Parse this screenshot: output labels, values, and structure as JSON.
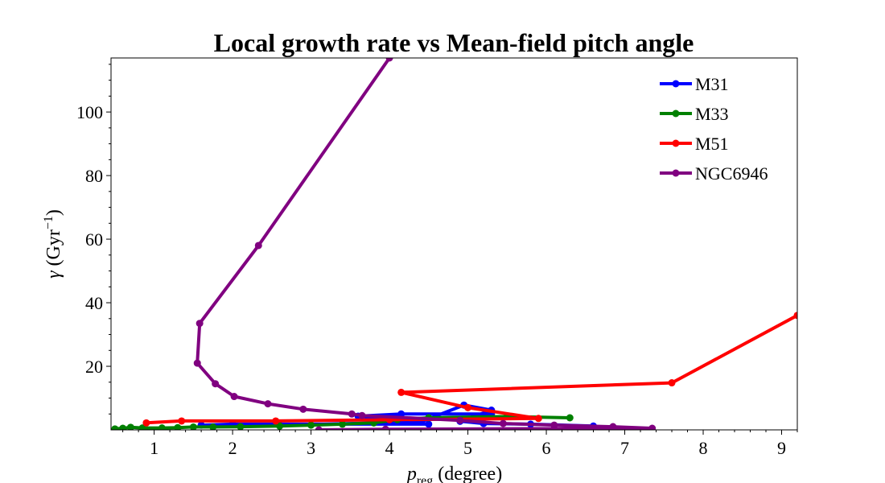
{
  "chart_data": {
    "type": "line",
    "title": "Local growth rate vs Mean-field pitch angle",
    "xlabel_main": "p",
    "xlabel_sub": "reg",
    "xlabel_rest": " (degree)",
    "ylabel_main": "γ (Gyr",
    "ylabel_sup": "−1",
    "ylabel_close": ")",
    "xlim": [
      0.45,
      9.2
    ],
    "ylim": [
      0,
      117
    ],
    "x_ticks": [
      "1",
      "2",
      "3",
      "4",
      "5",
      "6",
      "7",
      "8",
      "9"
    ],
    "y_ticks": [
      "20",
      "40",
      "60",
      "80",
      "100"
    ],
    "legend_position": "top-right",
    "series": [
      {
        "name": "M31",
        "color": "#0000ff",
        "points": [
          [
            5.3,
            5.0
          ],
          [
            4.15,
            5.0
          ],
          [
            3.6,
            4.3
          ],
          [
            4.5,
            1.8
          ],
          [
            2.0,
            1.8
          ],
          [
            1.6,
            1.5
          ],
          [
            2.6,
            1.5
          ],
          [
            4.4,
            2.5
          ],
          [
            4.95,
            7.8
          ],
          [
            5.3,
            6.2
          ],
          [
            4.9,
            2.7
          ],
          [
            5.2,
            2.0
          ],
          [
            5.8,
            1.8
          ],
          [
            6.6,
            1.2
          ]
        ]
      },
      {
        "name": "M33",
        "color": "#008000",
        "points": [
          [
            0.5,
            0.3
          ],
          [
            0.6,
            0.5
          ],
          [
            0.7,
            0.8
          ],
          [
            0.85,
            0.6
          ],
          [
            1.1,
            0.6
          ],
          [
            1.3,
            0.7
          ],
          [
            1.5,
            0.9
          ],
          [
            1.75,
            0.9
          ],
          [
            2.1,
            1.0
          ],
          [
            2.6,
            1.2
          ],
          [
            3.0,
            1.5
          ],
          [
            3.4,
            1.8
          ],
          [
            3.8,
            2.2
          ],
          [
            4.1,
            3.2
          ],
          [
            4.5,
            3.8
          ],
          [
            5.5,
            4.2
          ],
          [
            6.3,
            3.8
          ]
        ]
      },
      {
        "name": "M51",
        "color": "#ff0000",
        "points": [
          [
            0.9,
            2.2
          ],
          [
            1.35,
            2.8
          ],
          [
            2.55,
            2.8
          ],
          [
            4.0,
            3.2
          ],
          [
            5.9,
            3.6
          ],
          [
            5.0,
            7.0
          ],
          [
            4.15,
            11.8
          ],
          [
            7.6,
            14.8
          ],
          [
            9.2,
            36.0
          ]
        ]
      },
      {
        "name": "NGC6946",
        "color": "#800080",
        "points": [
          [
            4.0,
            117.0
          ],
          [
            2.33,
            58.0
          ],
          [
            1.58,
            33.5
          ],
          [
            1.55,
            21.0
          ],
          [
            1.78,
            14.5
          ],
          [
            2.02,
            10.5
          ],
          [
            2.45,
            8.2
          ],
          [
            2.9,
            6.5
          ],
          [
            3.52,
            5.0
          ],
          [
            3.65,
            4.5
          ],
          [
            4.9,
            3.0
          ],
          [
            5.45,
            2.0
          ],
          [
            6.1,
            1.5
          ],
          [
            6.85,
            1.0
          ],
          [
            7.35,
            0.5
          ],
          [
            3.95,
            0.2
          ],
          [
            3.1,
            0.0
          ]
        ]
      }
    ]
  }
}
